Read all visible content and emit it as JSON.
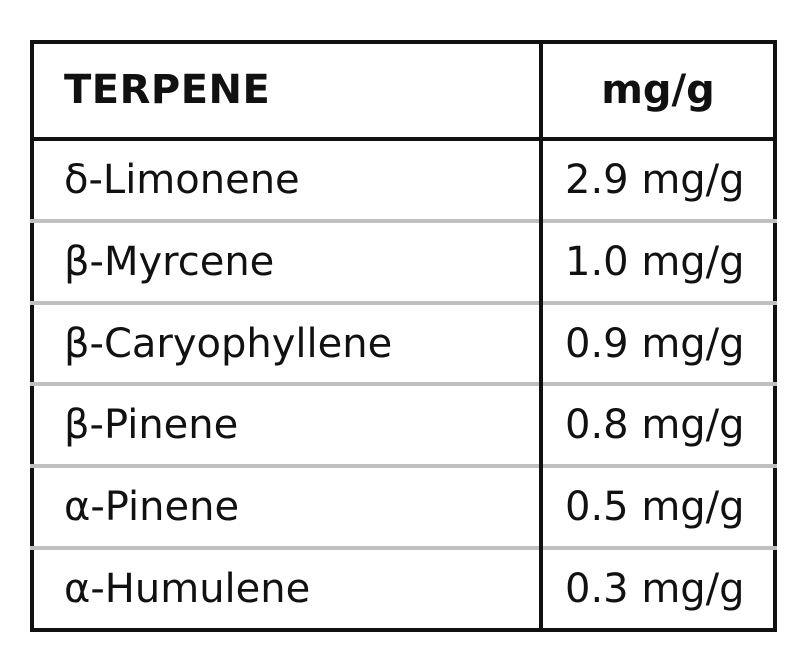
{
  "table": {
    "headers": {
      "terpene": "TERPENE",
      "amount": "mg/g"
    },
    "rows": [
      {
        "terpene": "δ-Limonene",
        "amount": "2.9 mg/g"
      },
      {
        "terpene": "β-Myrcene",
        "amount": "1.0 mg/g"
      },
      {
        "terpene": "β-Caryophyllene",
        "amount": "0.9 mg/g"
      },
      {
        "terpene": "β-Pinene",
        "amount": "0.8 mg/g"
      },
      {
        "terpene": "α-Pinene",
        "amount": "0.5 mg/g"
      },
      {
        "terpene": "α-Humulene",
        "amount": "0.3 mg/g"
      }
    ]
  },
  "colors": {
    "border": "#111111",
    "row_divider": "#bfbfbf",
    "background": "#ffffff"
  }
}
